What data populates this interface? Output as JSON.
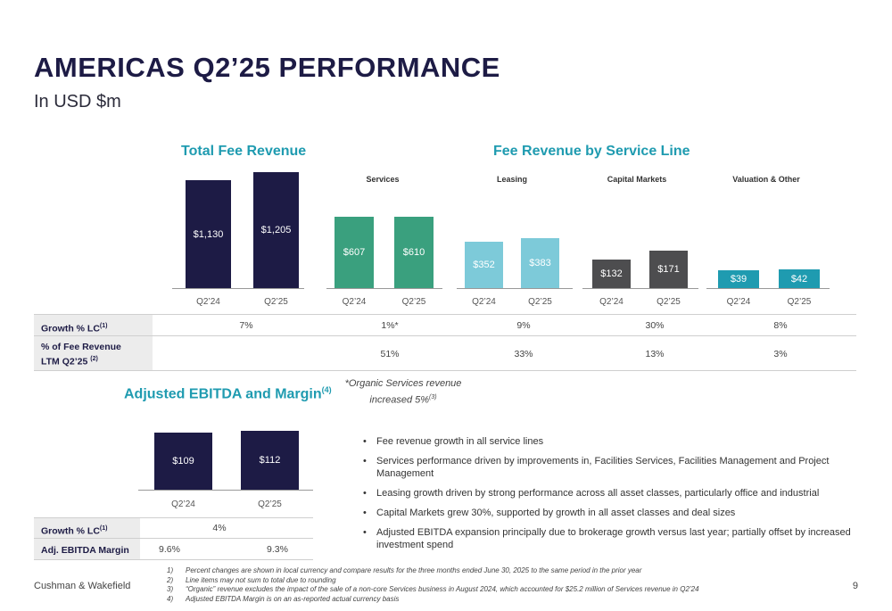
{
  "header": {
    "title": "AMERICAS Q2’25 PERFORMANCE",
    "subtitle": "In USD $m"
  },
  "total_fee_revenue": {
    "heading": "Total Fee Revenue"
  },
  "fee_by_service": {
    "heading": "Fee Revenue by Service Line",
    "services_label": "Services",
    "leasing_label": "Leasing",
    "capital_markets_label": "Capital Markets",
    "valuation_label": "Valuation & Other"
  },
  "colors": {
    "total": "#1d1b45",
    "services": "#3aa07e",
    "leasing": "#7dcad9",
    "capital_markets": "#4d4d4f",
    "valuation": "#1f9bb0",
    "heading_accent": "#1f9bb0"
  },
  "chart_data": [
    {
      "type": "bar",
      "title": "Total Fee Revenue",
      "categories": [
        "Q2’24",
        "Q2’25"
      ],
      "values": [
        1130,
        1205
      ],
      "value_labels": [
        "$1,130",
        "$1,205"
      ]
    },
    {
      "type": "bar",
      "title": "Services",
      "categories": [
        "Q2’24",
        "Q2’25"
      ],
      "values": [
        607,
        610
      ],
      "value_labels": [
        "$607",
        "$610"
      ]
    },
    {
      "type": "bar",
      "title": "Leasing",
      "categories": [
        "Q2’24",
        "Q2’25"
      ],
      "values": [
        352,
        383
      ],
      "value_labels": [
        "$352",
        "$383"
      ]
    },
    {
      "type": "bar",
      "title": "Capital Markets",
      "categories": [
        "Q2’24",
        "Q2’25"
      ],
      "values": [
        132,
        171
      ],
      "value_labels": [
        "$132",
        "$171"
      ]
    },
    {
      "type": "bar",
      "title": "Valuation & Other",
      "categories": [
        "Q2’24",
        "Q2’25"
      ],
      "values": [
        39,
        42
      ],
      "value_labels": [
        "$39",
        "$42"
      ]
    },
    {
      "type": "bar",
      "title": "Adjusted EBITDA and Margin",
      "categories": [
        "Q2’24",
        "Q2’25"
      ],
      "values": [
        109,
        112
      ],
      "value_labels": [
        "$109",
        "$112"
      ]
    }
  ],
  "fee_table": {
    "growth_label": "Growth % LC",
    "growth_sup": "(1)",
    "share_label_line1": "% of Fee Revenue",
    "share_label_line2": "LTM Q2’25",
    "share_sup": "(2)",
    "growth": {
      "total": "7%",
      "services": "1%*",
      "leasing": "9%",
      "capital_markets": "30%",
      "valuation": "8%"
    },
    "share": {
      "services": "51%",
      "leasing": "33%",
      "capital_markets": "13%",
      "valuation": "3%"
    }
  },
  "organic_note": {
    "line1": "*Organic Services revenue",
    "line2": "increased 5%",
    "sup": "(3)"
  },
  "ebitda": {
    "heading": "Adjusted EBITDA and Margin",
    "heading_sup": "(4)",
    "growth_label": "Growth % LC",
    "growth_sup": "(1)",
    "growth_value": "4%",
    "margin_label": "Adj. EBITDA Margin",
    "margin_q224": "9.6%",
    "margin_q225": "9.3%"
  },
  "bullets": [
    "Fee revenue growth in all service lines",
    "Services performance driven by improvements in, Facilities Services, Facilities Management and Project Management",
    "Leasing growth driven by strong performance across all asset classes, particularly office and industrial",
    "Capital Markets grew 30%, supported by growth in all asset classes and deal sizes",
    "Adjusted EBITDA expansion principally due to brokerage growth versus last year; partially offset by increased investment spend"
  ],
  "footnotes": [
    {
      "num": "1)",
      "text": "Percent changes are shown in local currency and compare results for the three months ended June 30, 2025 to the same period in the prior year"
    },
    {
      "num": "2)",
      "text": "Line items may not sum to total due to rounding"
    },
    {
      "num": "3)",
      "text": "“Organic” revenue excludes the impact of the sale of a non-core Services business in August 2024, which accounted for $25.2 million of Services revenue in Q2’24"
    },
    {
      "num": "4)",
      "text": "Adjusted EBITDA Margin is on an as-reported actual currency basis"
    }
  ],
  "footer": {
    "company": "Cushman & Wakefield",
    "page_number": "9"
  }
}
